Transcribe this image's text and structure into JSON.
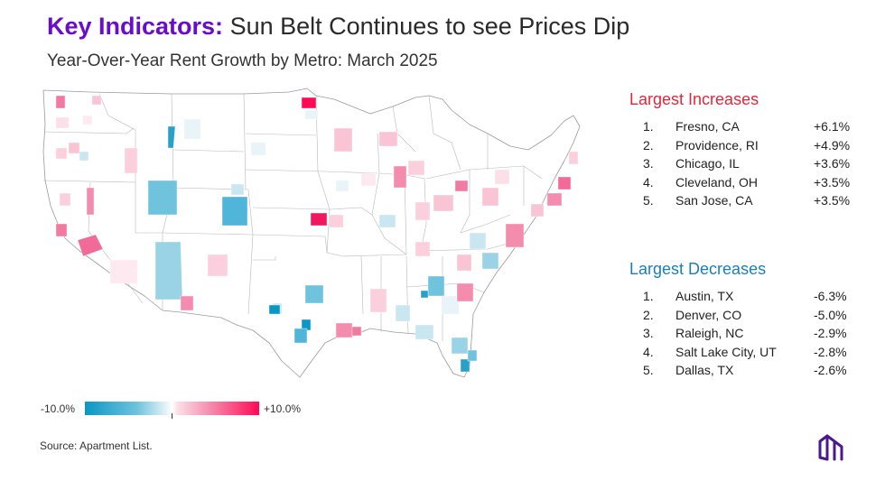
{
  "title": {
    "highlight": "Key Indicators:",
    "rest": "Sun Belt Continues to see Prices Dip"
  },
  "subtitle": "Year-Over-Year Rent Growth by Metro: March 2025",
  "colors": {
    "title_accent": "#6a0dca",
    "increase": "#e3263a",
    "decrease": "#1a7fb5",
    "scale_min": "#0a97c4",
    "scale_max": "#ff0a56"
  },
  "largest_increases": {
    "heading": "Largest Increases",
    "rows": [
      {
        "rank": "1.",
        "metro": "Fresno, CA",
        "value": "+6.1%"
      },
      {
        "rank": "2.",
        "metro": "Providence, RI",
        "value": "+4.9%"
      },
      {
        "rank": "3.",
        "metro": "Chicago, IL",
        "value": "+3.6%"
      },
      {
        "rank": "4.",
        "metro": "Cleveland, OH",
        "value": "+3.5%"
      },
      {
        "rank": "5.",
        "metro": "San Jose, CA",
        "value": "+3.5%"
      }
    ]
  },
  "largest_decreases": {
    "heading": "Largest Decreases",
    "rows": [
      {
        "rank": "1.",
        "metro": "Austin, TX",
        "value": "-6.3%"
      },
      {
        "rank": "2.",
        "metro": "Denver, CO",
        "value": "-5.0%"
      },
      {
        "rank": "3.",
        "metro": "Raleigh, NC",
        "value": "-2.9%"
      },
      {
        "rank": "4.",
        "metro": "Salt Lake City, UT",
        "value": "-2.8%"
      },
      {
        "rank": "5.",
        "metro": "Dallas, TX",
        "value": "-2.6%"
      }
    ]
  },
  "legend": {
    "min_label": "-10.0%",
    "max_label": "+10.0%"
  },
  "source": "Source: Apartment List.",
  "logo_icon": "apartment-list-logo-icon"
}
